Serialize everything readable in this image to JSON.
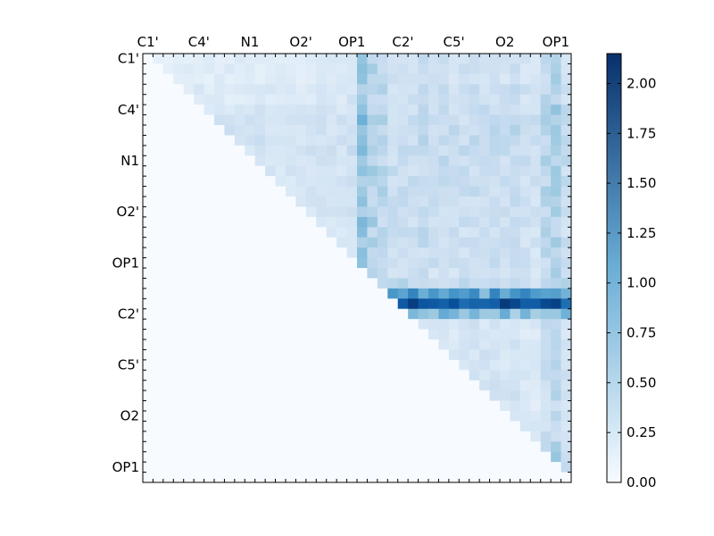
{
  "chart_data": {
    "type": "heatmap",
    "title": "",
    "xlabel": "",
    "ylabel": "",
    "rows": 42,
    "cols": 42,
    "x_tick_labels": [
      "C1'",
      "C4'",
      "N1",
      "O2'",
      "OP1",
      "C2'",
      "C5'",
      "O2",
      "OP1"
    ],
    "y_tick_labels": [
      "C1'",
      "C4'",
      "N1",
      "O2'",
      "OP1",
      "C2'",
      "C5'",
      "O2",
      "OP1"
    ],
    "tick_every": 5,
    "colormap": "Blues",
    "color_low": "#f7fbff",
    "color_high": "#08306b",
    "clim": [
      0.0,
      2.15
    ],
    "colorbar_ticks": [
      "0.00",
      "0.25",
      "0.50",
      "0.75",
      "1.00",
      "1.25",
      "1.50",
      "1.75",
      "2.00"
    ],
    "colorbar_tick_values": [
      0.0,
      0.25,
      0.5,
      0.75,
      1.0,
      1.25,
      1.5,
      1.75,
      2.0
    ],
    "upper_triangle_only": true,
    "row_profile": [
      0.25,
      0.28,
      0.25,
      0.33,
      0.3,
      0.4,
      0.45,
      0.45,
      0.45,
      0.45,
      0.42,
      0.4,
      0.4,
      0.4,
      0.38,
      0.38,
      0.36,
      0.34,
      0.33,
      0.3,
      0.35,
      0.28,
      0.5,
      1.3,
      1.9,
      1.0,
      0.15,
      0.1,
      0.12,
      0.2,
      0.18,
      0.2,
      0.18,
      0.15,
      0.12,
      0.15,
      0.16,
      0.18,
      0.3,
      0.35,
      0.35,
      0.05
    ],
    "column_profile": [
      0.1,
      0.2,
      0.2,
      0.25,
      0.2,
      0.3,
      0.2,
      0.25,
      0.2,
      0.25,
      0.2,
      0.2,
      0.25,
      0.25,
      0.2,
      0.2,
      0.2,
      0.3,
      0.35,
      0.3,
      0.5,
      1.3,
      1.0,
      0.8,
      0.55,
      0.6,
      0.55,
      0.7,
      0.55,
      0.6,
      0.55,
      0.55,
      0.6,
      0.55,
      0.6,
      0.55,
      0.65,
      0.5,
      0.45,
      0.8,
      1.0,
      0.6
    ]
  }
}
